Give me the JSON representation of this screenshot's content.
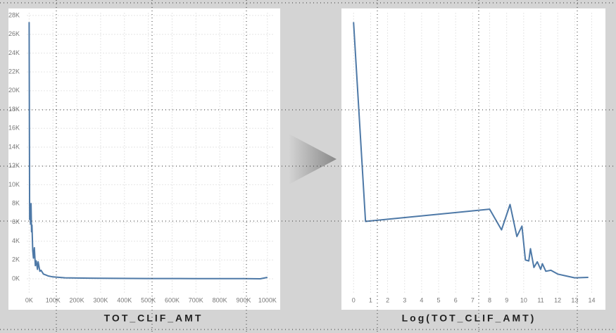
{
  "chart_data": [
    {
      "type": "line",
      "x_label": "TOT_CLIF_AMT",
      "color": "#4e79a7",
      "grid": true,
      "x": [
        0,
        2000,
        4000,
        6000,
        8000,
        10000,
        12000,
        15000,
        18000,
        22000,
        26000,
        30000,
        35000,
        38000,
        45000,
        50000,
        60000,
        70000,
        80000,
        100000,
        150000,
        200000,
        300000,
        500000,
        700000,
        900000,
        970000,
        1000000
      ],
      "values": [
        27300,
        6300,
        7500,
        5800,
        8000,
        5000,
        5700,
        3000,
        2200,
        3300,
        1400,
        1900,
        1000,
        1800,
        800,
        900,
        500,
        400,
        300,
        200,
        100,
        80,
        50,
        30,
        20,
        10,
        0,
        150
      ],
      "xlim": [
        -10000,
        1030000
      ],
      "ylim": [
        -1500,
        28300
      ],
      "xticks": [
        {
          "value": 0,
          "label": "0K"
        },
        {
          "value": 100000,
          "label": "100K"
        },
        {
          "value": 200000,
          "label": "200K"
        },
        {
          "value": 300000,
          "label": "300K"
        },
        {
          "value": 400000,
          "label": "400K"
        },
        {
          "value": 500000,
          "label": "500K"
        },
        {
          "value": 600000,
          "label": "600K"
        },
        {
          "value": 700000,
          "label": "700K"
        },
        {
          "value": 800000,
          "label": "800K"
        },
        {
          "value": 900000,
          "label": "900K"
        },
        {
          "value": 1000000,
          "label": "1000K"
        }
      ],
      "yticks": [
        {
          "value": 0,
          "label": "0K"
        },
        {
          "value": 2000,
          "label": "2K"
        },
        {
          "value": 4000,
          "label": "4K"
        },
        {
          "value": 6000,
          "label": "6K"
        },
        {
          "value": 8000,
          "label": "8K"
        },
        {
          "value": 10000,
          "label": "10K"
        },
        {
          "value": 12000,
          "label": "12K"
        },
        {
          "value": 14000,
          "label": "14K"
        },
        {
          "value": 16000,
          "label": "16K"
        },
        {
          "value": 18000,
          "label": "18K"
        },
        {
          "value": 20000,
          "label": "20K"
        },
        {
          "value": 22000,
          "label": "22K"
        },
        {
          "value": 24000,
          "label": "24K"
        },
        {
          "value": 26000,
          "label": "26K"
        },
        {
          "value": 28000,
          "label": "28K"
        }
      ]
    },
    {
      "type": "line",
      "x_label": "Log(TOT_CLIF_AMT)",
      "color": "#4e79a7",
      "grid": true,
      "x": [
        0,
        0.7,
        8,
        8.7,
        9.2,
        9.6,
        9.9,
        10.1,
        10.3,
        10.4,
        10.6,
        10.8,
        11,
        11.1,
        11.3,
        11.6,
        12,
        12.5,
        13,
        13.8
      ],
      "values": [
        27300,
        6100,
        7400,
        5200,
        7900,
        4500,
        5600,
        2000,
        1900,
        3200,
        1200,
        1800,
        1000,
        1600,
        800,
        900,
        500,
        300,
        100,
        150
      ],
      "xlim": [
        -0.3,
        14.6
      ],
      "ylim": [
        -1500,
        28300
      ],
      "xticks": [
        0,
        1,
        2,
        3,
        4,
        5,
        6,
        7,
        8,
        9,
        10,
        11,
        12,
        13,
        14
      ]
    }
  ]
}
